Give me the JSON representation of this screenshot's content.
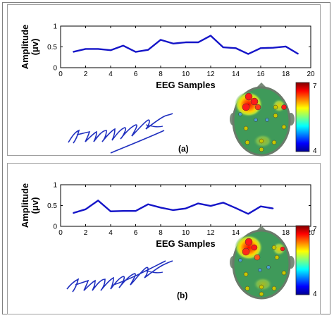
{
  "chart_data": [
    {
      "type": "line",
      "panel_label": "(a)",
      "xlabel": "EEG Samples",
      "ylabel": "Amplitude (μv)",
      "xlim": [
        0,
        20
      ],
      "ylim": [
        0,
        1
      ],
      "xticks": [
        0,
        2,
        4,
        6,
        8,
        10,
        12,
        14,
        16,
        18,
        20
      ],
      "yticks": [
        0,
        0.5,
        1
      ],
      "x": [
        1,
        2,
        3,
        4,
        5,
        6,
        7,
        8,
        9,
        10,
        11,
        12,
        13,
        14,
        15,
        16,
        17,
        18,
        19
      ],
      "values": [
        0.38,
        0.45,
        0.45,
        0.42,
        0.53,
        0.38,
        0.43,
        0.67,
        0.58,
        0.61,
        0.61,
        0.77,
        0.49,
        0.47,
        0.33,
        0.47,
        0.48,
        0.51,
        0.33
      ],
      "line_color": "#1515c8",
      "colorbar": {
        "min_label": "4",
        "max_label": "7"
      },
      "signature": "signature-a"
    },
    {
      "type": "line",
      "panel_label": "(b)",
      "xlabel": "EEG Samples",
      "ylabel": "Amplitude (μv)",
      "xlim": [
        0,
        20
      ],
      "ylim": [
        0,
        1
      ],
      "xticks": [
        0,
        2,
        4,
        6,
        8,
        10,
        12,
        14,
        16,
        18,
        20
      ],
      "yticks": [
        0,
        0.5,
        1
      ],
      "x": [
        1,
        2,
        3,
        4,
        5,
        6,
        7,
        8,
        9,
        10,
        11,
        12,
        13,
        14,
        15,
        16,
        17
      ],
      "values": [
        0.32,
        0.41,
        0.62,
        0.36,
        0.37,
        0.37,
        0.53,
        0.45,
        0.39,
        0.43,
        0.55,
        0.49,
        0.57,
        0.44,
        0.3,
        0.48,
        0.43
      ],
      "line_color": "#1515c8",
      "colorbar": {
        "min_label": "4",
        "max_label": "7"
      },
      "signature": "signature-b"
    }
  ]
}
